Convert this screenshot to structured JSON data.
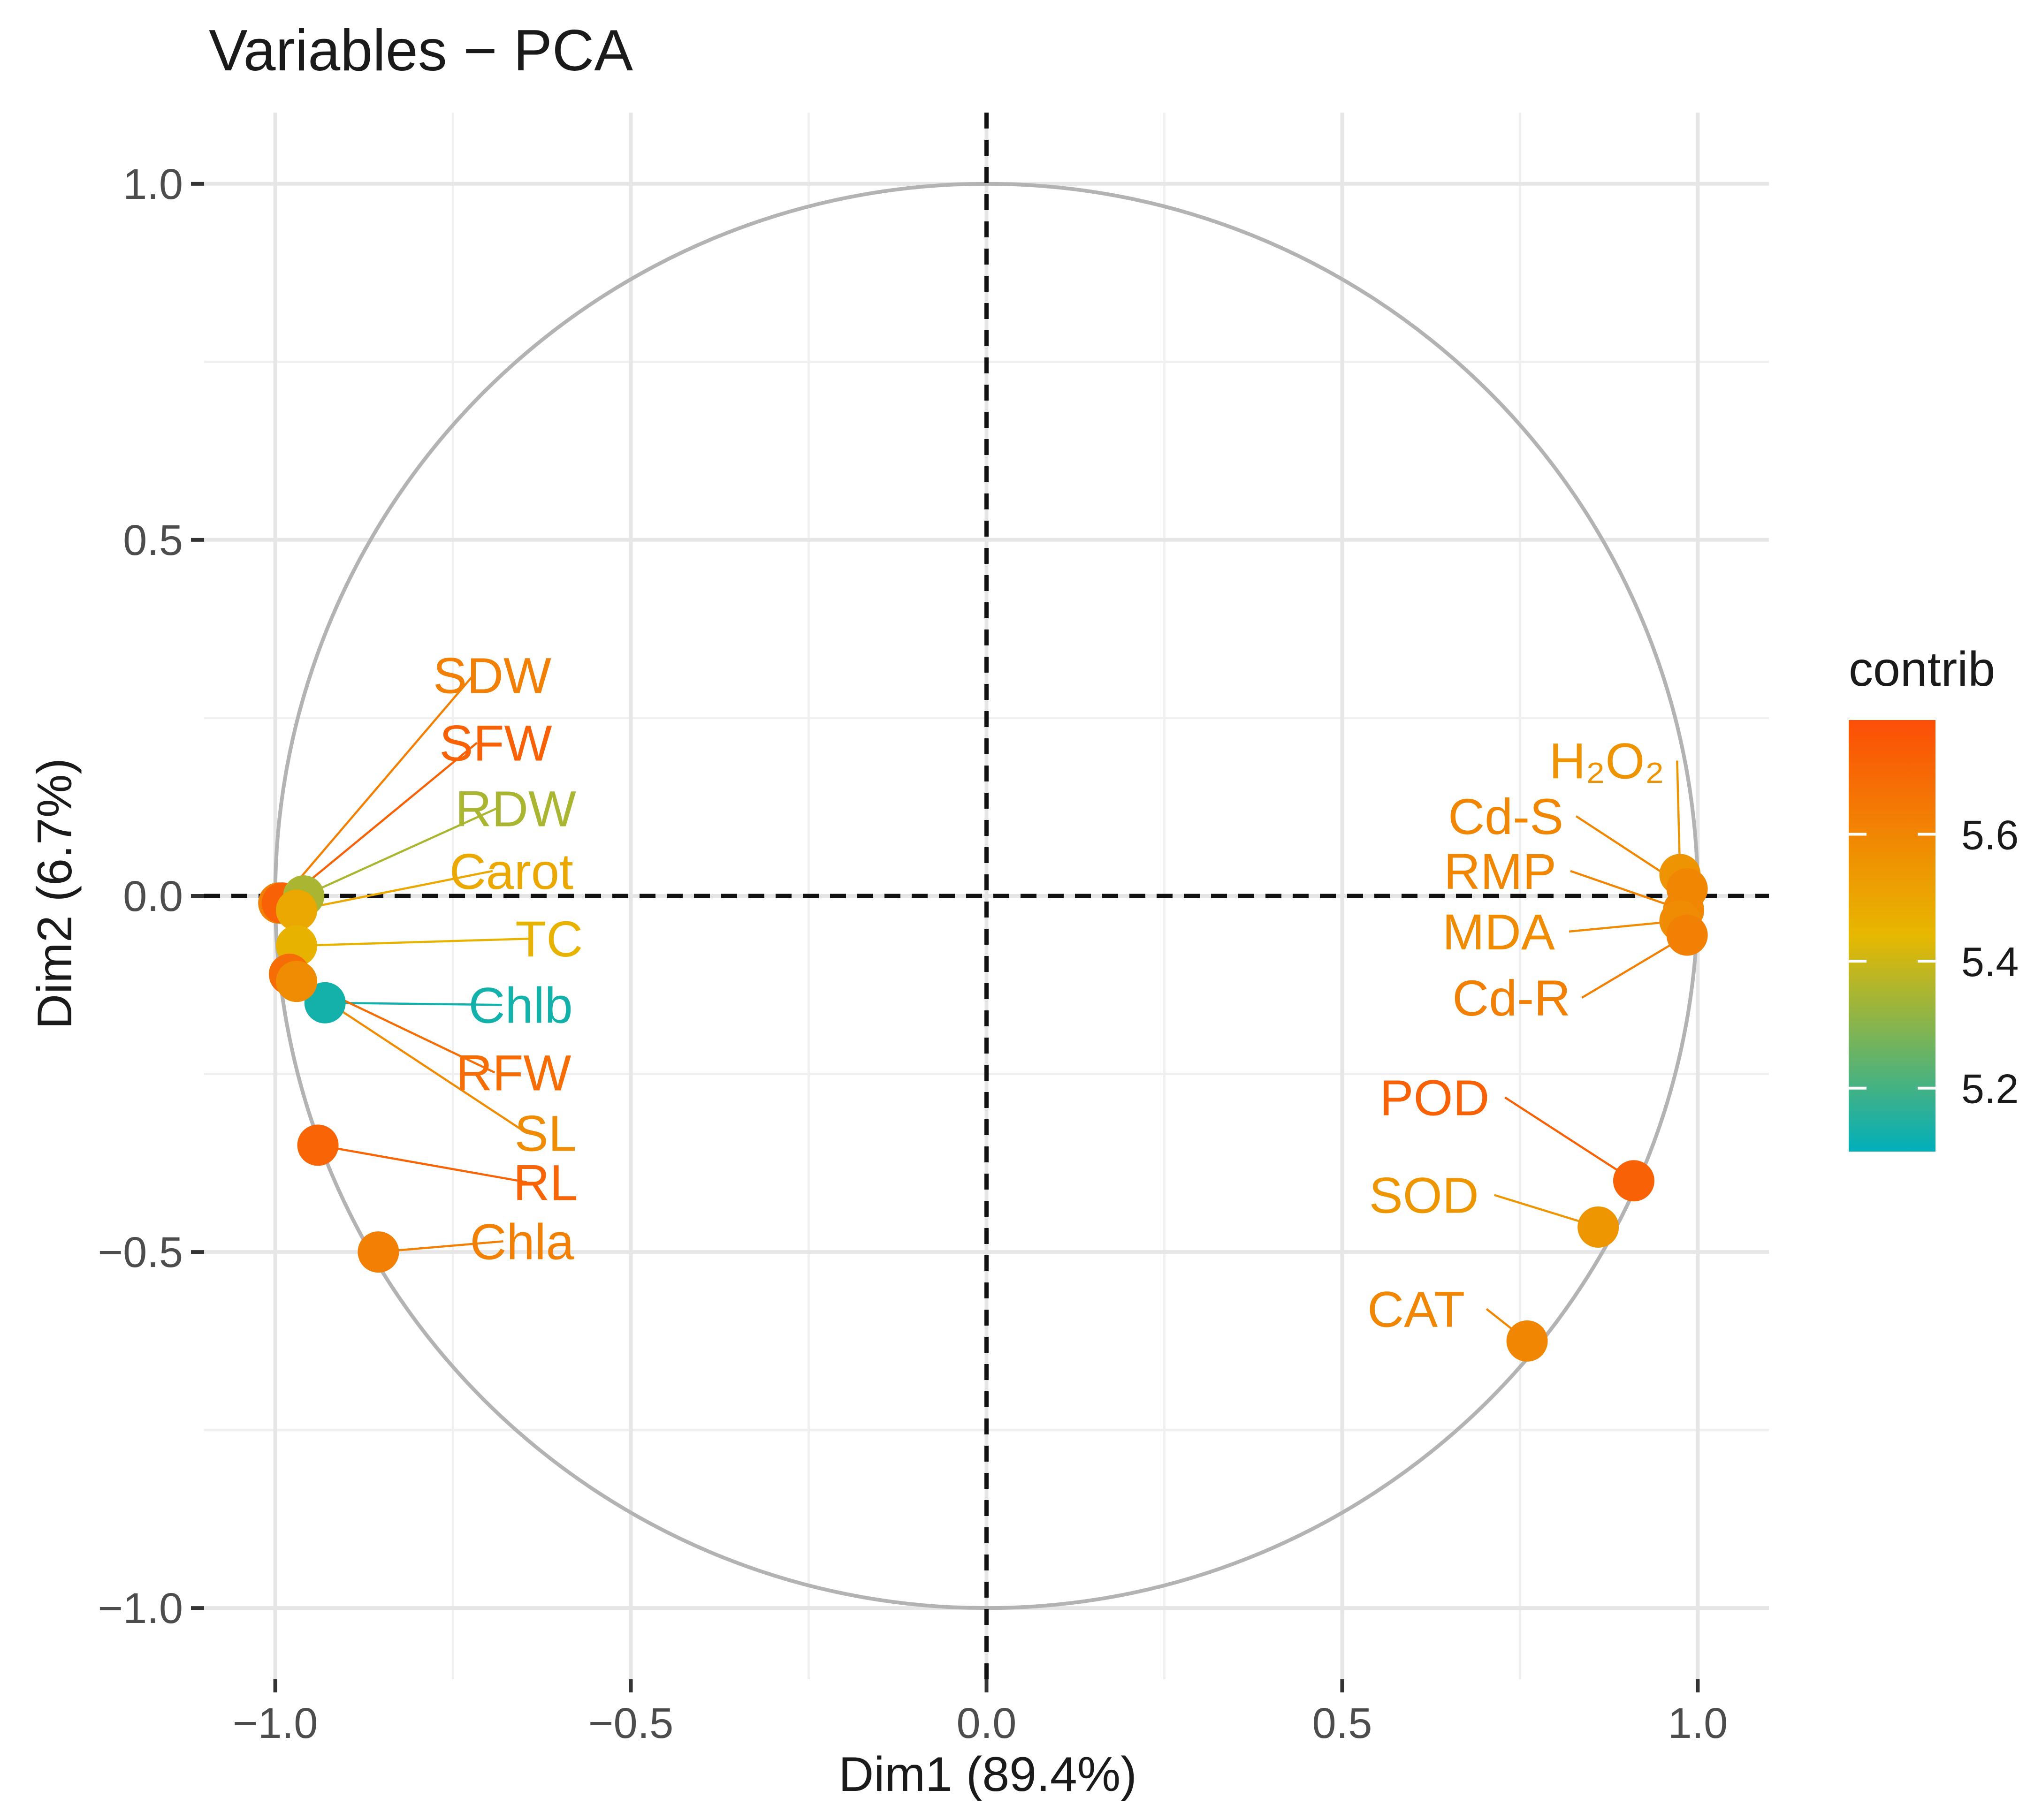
{
  "chart_data": {
    "type": "scatter",
    "subtype": "pca-variable-correlation-circle",
    "title": "Variables − PCA",
    "xlabel": "Dim1 (89.4%)",
    "ylabel": "Dim2 (6.7%)",
    "xlim": [
      -1.1,
      1.1
    ],
    "ylim": [
      -1.1,
      1.1
    ],
    "x_ticks": [
      -1.0,
      -0.5,
      0.0,
      0.5,
      1.0
    ],
    "x_tick_labels": [
      "−1.0",
      "−0.5",
      "0.0",
      "0.5",
      "1.0"
    ],
    "y_ticks": [
      -1.0,
      -0.5,
      0.0,
      0.5,
      1.0
    ],
    "y_tick_labels": [
      "−1.0",
      "−0.5",
      "0.0",
      "0.5",
      "1.0"
    ],
    "grid": true,
    "unit_circle": true,
    "reference_lines": [
      {
        "axis": "x",
        "value": 0,
        "style": "dashed"
      },
      {
        "axis": "y",
        "value": 0,
        "style": "dashed"
      }
    ],
    "legend": {
      "title": "contrib",
      "position": "right",
      "range": [
        5.1,
        5.78
      ],
      "ticks": [
        5.2,
        5.4,
        5.6
      ],
      "tick_labels": [
        "5.2",
        "5.4",
        "5.6"
      ],
      "gradient": [
        "#00AFBB",
        "#E7B800",
        "#FC4E07"
      ]
    },
    "points": [
      {
        "name": "SDW",
        "x": -0.995,
        "y": -0.01,
        "contrib": 5.62,
        "label_x": -0.695,
        "label_y": 0.31
      },
      {
        "name": "SFW",
        "x": -0.99,
        "y": -0.01,
        "contrib": 5.72,
        "label_x": -0.69,
        "label_y": 0.215
      },
      {
        "name": "RDW",
        "x": -0.96,
        "y": 0.0,
        "contrib": 5.35,
        "label_x": -0.662,
        "label_y": 0.123
      },
      {
        "name": "Carot",
        "x": -0.97,
        "y": -0.02,
        "contrib": 5.49,
        "label_x": -0.668,
        "label_y": 0.035
      },
      {
        "name": "TC",
        "x": -0.97,
        "y": -0.07,
        "contrib": 5.46,
        "label_x": -0.615,
        "label_y": -0.06
      },
      {
        "name": "Chlb",
        "x": -0.93,
        "y": -0.15,
        "contrib": 5.13,
        "label_x": -0.655,
        "label_y": -0.153
      },
      {
        "name": "RFW",
        "x": -0.98,
        "y": -0.11,
        "contrib": 5.68,
        "label_x": -0.665,
        "label_y": -0.248
      },
      {
        "name": "SL",
        "x": -0.97,
        "y": -0.12,
        "contrib": 5.58,
        "label_x": -0.62,
        "label_y": -0.333
      },
      {
        "name": "RL",
        "x": -0.94,
        "y": -0.35,
        "contrib": 5.71,
        "label_x": -0.62,
        "label_y": -0.402
      },
      {
        "name": "Chla",
        "x": -0.855,
        "y": -0.5,
        "contrib": 5.62,
        "label_x": -0.653,
        "label_y": -0.485
      },
      {
        "name": "H₂O₂",
        "x": 0.975,
        "y": 0.03,
        "contrib": 5.56,
        "label_x": 0.872,
        "label_y": 0.19
      },
      {
        "name": "Cd-S",
        "x": 0.985,
        "y": 0.01,
        "contrib": 5.6,
        "label_x": 0.73,
        "label_y": 0.112
      },
      {
        "name": "RMP",
        "x": 0.98,
        "y": -0.02,
        "contrib": 5.6,
        "label_x": 0.722,
        "label_y": 0.035
      },
      {
        "name": "MDA",
        "x": 0.975,
        "y": -0.035,
        "contrib": 5.58,
        "label_x": 0.72,
        "label_y": -0.05
      },
      {
        "name": "Cd-R",
        "x": 0.985,
        "y": -0.055,
        "contrib": 5.62,
        "label_x": 0.738,
        "label_y": -0.143
      },
      {
        "name": "POD",
        "x": 0.91,
        "y": -0.4,
        "contrib": 5.72,
        "label_x": 0.63,
        "label_y": -0.283
      },
      {
        "name": "SOD",
        "x": 0.86,
        "y": -0.465,
        "contrib": 5.55,
        "label_x": 0.615,
        "label_y": -0.42
      },
      {
        "name": "CAT",
        "x": 0.76,
        "y": -0.625,
        "contrib": 5.6,
        "label_x": 0.604,
        "label_y": -0.58
      }
    ]
  }
}
